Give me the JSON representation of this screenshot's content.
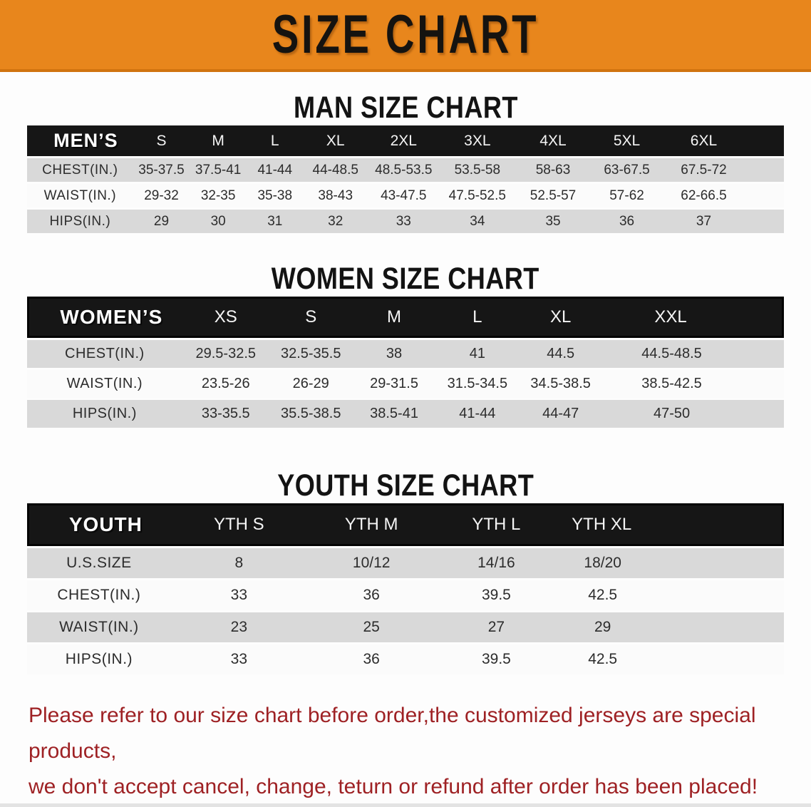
{
  "banner": {
    "title": "SIZE CHART",
    "bg_color": "#E8861C"
  },
  "sections": [
    {
      "heading": "MAN SIZE CHART",
      "table": {
        "header_label": "MEN’S",
        "columns": [
          "S",
          "M",
          "L",
          "XL",
          "2XL",
          "3XL",
          "4XL",
          "5XL",
          "6XL"
        ],
        "rows": [
          {
            "label": "CHEST(IN.)",
            "values": [
              "35-37.5",
              "37.5-41",
              "41-44",
              "44-48.5",
              "48.5-53.5",
              "53.5-58",
              "58-63",
              "63-67.5",
              "67.5-72"
            ]
          },
          {
            "label": "WAIST(IN.)",
            "values": [
              "29-32",
              "32-35",
              "35-38",
              "38-43",
              "43-47.5",
              "47.5-52.5",
              "52.5-57",
              "57-62",
              "62-66.5"
            ]
          },
          {
            "label": "HIPS(IN.)",
            "values": [
              "29",
              "30",
              "31",
              "32",
              "33",
              "34",
              "35",
              "36",
              "37"
            ]
          }
        ]
      }
    },
    {
      "heading": "WOMEN SIZE CHART",
      "table": {
        "header_label": "WOMEN’S",
        "columns": [
          "XS",
          "S",
          "M",
          "L",
          "XL",
          "XXL"
        ],
        "rows": [
          {
            "label": "CHEST(IN.)",
            "values": [
              "29.5-32.5",
              "32.5-35.5",
              "38",
              "41",
              "44.5",
              "44.5-48.5"
            ]
          },
          {
            "label": "WAIST(IN.)",
            "values": [
              "23.5-26",
              "26-29",
              "29-31.5",
              "31.5-34.5",
              "34.5-38.5",
              "38.5-42.5"
            ]
          },
          {
            "label": "HIPS(IN.)",
            "values": [
              "33-35.5",
              "35.5-38.5",
              "38.5-41",
              "41-44",
              "44-47",
              "47-50"
            ]
          }
        ]
      }
    },
    {
      "heading": "YOUTH SIZE CHART",
      "table": {
        "header_label": "YOUTH",
        "columns": [
          "YTH S",
          "YTH M",
          "YTH L",
          "YTH XL"
        ],
        "rows": [
          {
            "label": "U.S.SIZE",
            "values": [
              "8",
              "10/12",
              "14/16",
              "18/20"
            ]
          },
          {
            "label": "CHEST(IN.)",
            "values": [
              "33",
              "36",
              "39.5",
              "42.5"
            ]
          },
          {
            "label": "WAIST(IN.)",
            "values": [
              "23",
              "25",
              "27",
              "29"
            ]
          },
          {
            "label": "HIPS(IN.)",
            "values": [
              "33",
              "36",
              "39.5",
              "42.5"
            ]
          }
        ]
      }
    }
  ],
  "footer": {
    "line1": "Please refer to our size chart before order,the customized jerseys are special products,",
    "line2": "we don't accept cancel, change, teturn or refund after order has been placed!",
    "text_color": "#9e2124"
  }
}
